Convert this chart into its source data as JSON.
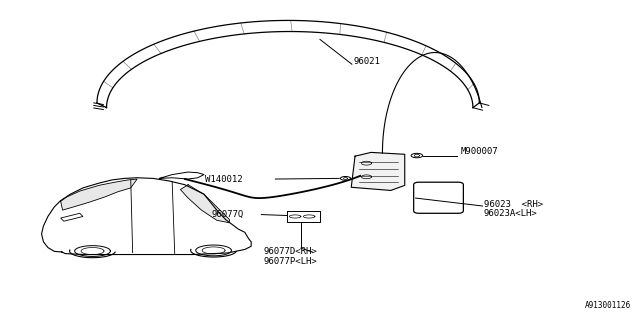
{
  "bg_color": "#ffffff",
  "line_color": "#000000",
  "text_color": "#000000",
  "diagram_id": "A913001126",
  "label_96021": "96021",
  "label_W140012": "W140012",
  "label_M900007": "M900007",
  "label_96077Q": "96077Q",
  "label_96023_RH": "96023  <RH>",
  "label_96023A_LH": "96023A<LH>",
  "label_96077D_RH": "96077D<RH>",
  "label_96077P_LH": "96077P<LH>"
}
